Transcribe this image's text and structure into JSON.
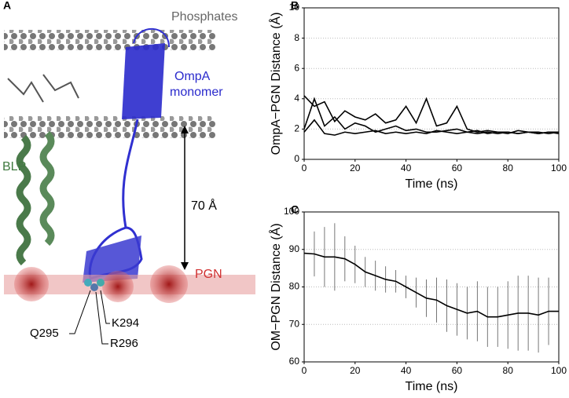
{
  "panel_a": {
    "label": "A",
    "phosphates": "Phosphates",
    "ompa": [
      "OmpA",
      "monomer"
    ],
    "blp": "BLP",
    "distance": "70 Å",
    "pgn": "PGN",
    "residues": [
      "K294",
      "Q295",
      "R296"
    ]
  },
  "chart_data": [
    {
      "type": "line",
      "panel": "B",
      "xlabel": "Time (ns)",
      "ylabel": "OmpA−PGN Distance (Å)",
      "x": [
        0,
        4,
        8,
        12,
        16,
        20,
        24,
        28,
        32,
        36,
        40,
        44,
        48,
        52,
        56,
        60,
        64,
        68,
        72,
        76,
        80,
        84,
        88,
        92,
        96,
        100
      ],
      "series": [
        {
          "color": "#000000",
          "values": [
            4.2,
            3.5,
            3.8,
            2.5,
            3.2,
            2.8,
            2.6,
            3.0,
            2.4,
            2.6,
            3.5,
            2.4,
            4.0,
            2.2,
            2.4,
            3.5,
            2.0,
            1.8,
            1.9,
            1.8,
            1.8,
            1.7,
            1.8,
            1.8,
            1.7,
            1.8
          ]
        },
        {
          "color": "#000000",
          "values": [
            2.0,
            4.0,
            2.2,
            2.8,
            2.0,
            2.4,
            2.2,
            1.8,
            2.0,
            2.2,
            1.9,
            2.0,
            1.8,
            1.8,
            1.9,
            2.0,
            1.8,
            1.9,
            1.7,
            1.8,
            1.7,
            1.9,
            1.8,
            1.7,
            1.8,
            1.8
          ]
        },
        {
          "color": "#000000",
          "values": [
            1.8,
            2.6,
            1.7,
            1.6,
            1.8,
            1.7,
            1.8,
            1.9,
            1.7,
            1.8,
            1.7,
            1.8,
            1.7,
            1.9,
            1.8,
            1.7,
            1.8,
            1.7,
            1.8,
            1.7,
            1.8,
            1.7,
            1.8,
            1.7,
            1.8,
            1.7
          ]
        }
      ],
      "xlim": [
        0,
        100
      ],
      "xticks": [
        0,
        20,
        40,
        60,
        80,
        100
      ],
      "ylim": [
        0,
        10
      ],
      "yticks": [
        0,
        2,
        4,
        6,
        8,
        10
      ],
      "grid": true
    },
    {
      "type": "line",
      "panel": "C",
      "xlabel": "Time (ns)",
      "ylabel": "OM−PGN Distance (Å)",
      "x": [
        0,
        4,
        8,
        12,
        16,
        20,
        24,
        28,
        32,
        36,
        40,
        44,
        48,
        52,
        56,
        60,
        64,
        68,
        72,
        76,
        80,
        84,
        88,
        92,
        96,
        100
      ],
      "series": [
        {
          "color": "#000000",
          "error_color": "#555555",
          "values": [
            89,
            88.8,
            88,
            88,
            87.5,
            86,
            84,
            83,
            82,
            81.5,
            80,
            78.5,
            77,
            76.5,
            75,
            74,
            73,
            73.5,
            72,
            72,
            72.5,
            73,
            73,
            72.5,
            73.5,
            73.5
          ],
          "errors": [
            4,
            6,
            8,
            9,
            6,
            5,
            4,
            4,
            3.5,
            3,
            3,
            4,
            5,
            6,
            7,
            7,
            7,
            8,
            8,
            8,
            9,
            10,
            10,
            10,
            9,
            10
          ]
        }
      ],
      "xlim": [
        0,
        100
      ],
      "xticks": [
        0,
        20,
        40,
        60,
        80,
        100
      ],
      "ylim": [
        60,
        100
      ],
      "yticks": [
        60,
        70,
        80,
        90,
        100
      ],
      "grid": true
    }
  ]
}
